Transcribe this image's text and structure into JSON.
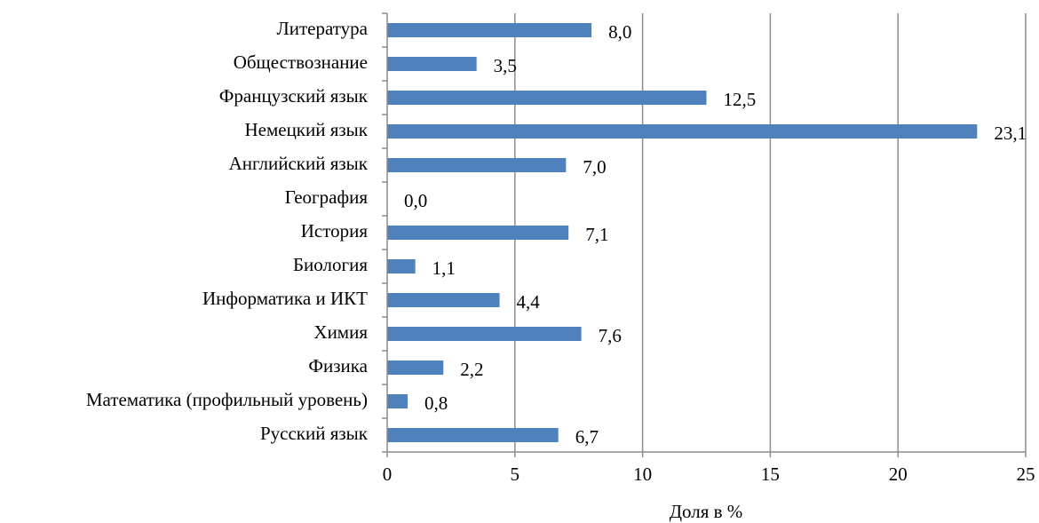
{
  "chart_data": {
    "type": "bar",
    "orientation": "horizontal",
    "categories": [
      "Литература",
      "Обществознание",
      "Французский язык",
      "Немецкий язык",
      "Английский язык",
      "География",
      "История",
      "Биология",
      "Информатика и ИКТ",
      "Химия",
      "Физика",
      "Математика (профильный уровень)",
      "Русский язык"
    ],
    "values": [
      8.0,
      3.5,
      12.5,
      23.1,
      7.0,
      0.0,
      7.1,
      1.1,
      4.4,
      7.6,
      2.2,
      0.8,
      6.7
    ],
    "value_labels": [
      "8,0",
      "3,5",
      "12,5",
      "23,1",
      "7,0",
      "0,0",
      "7,1",
      "1,1",
      "4,4",
      "7,6",
      "2,2",
      "0,8",
      "6,7"
    ],
    "color": "#4f81bd",
    "xlabel": "Доля в %",
    "xlim": [
      0,
      25
    ],
    "xticks": [
      0,
      5,
      10,
      15,
      20,
      25
    ],
    "grid": true
  }
}
